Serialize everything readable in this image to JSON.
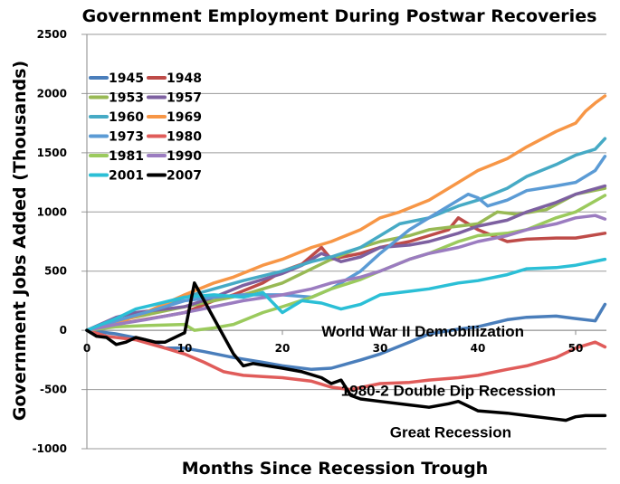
{
  "chart_data": {
    "type": "line",
    "title": "Government Employment During Postwar Recoveries",
    "xlabel": "Months Since Recession Trough",
    "ylabel": "Government Jobs Added (Thousands)",
    "xlim": [
      0,
      54
    ],
    "ylim": [
      -1000,
      2500
    ],
    "x_ticks": [
      0,
      10,
      20,
      30,
      40,
      50
    ],
    "x_tick_labels": [
      "0",
      "10",
      "20",
      "30",
      "40",
      "50"
    ],
    "y_ticks": [
      2500,
      2000,
      1500,
      1000,
      500,
      0,
      -500,
      -1000
    ],
    "y_tick_labels": [
      "2500",
      "2000",
      "1500",
      "1000",
      "500",
      "0",
      "-500",
      "-1000"
    ],
    "grid": "horizontal",
    "legend_position": "top-left",
    "series": [
      {
        "name": "1945",
        "color": "#4a7ebb",
        "points": [
          [
            0,
            0
          ],
          [
            3,
            -30
          ],
          [
            6,
            -80
          ],
          [
            8,
            -150
          ],
          [
            10,
            -150
          ],
          [
            12,
            -180
          ],
          [
            15,
            -230
          ],
          [
            18,
            -270
          ],
          [
            20,
            -300
          ],
          [
            23,
            -330
          ],
          [
            25,
            -320
          ],
          [
            28,
            -250
          ],
          [
            30,
            -200
          ],
          [
            33,
            -100
          ],
          [
            35,
            -30
          ],
          [
            38,
            10
          ],
          [
            40,
            30
          ],
          [
            43,
            90
          ],
          [
            45,
            110
          ],
          [
            48,
            120
          ],
          [
            50,
            100
          ],
          [
            52,
            80
          ],
          [
            53,
            220
          ]
        ]
      },
      {
        "name": "1948",
        "color": "#be4b48",
        "points": [
          [
            0,
            0
          ],
          [
            3,
            50
          ],
          [
            5,
            80
          ],
          [
            8,
            120
          ],
          [
            10,
            150
          ],
          [
            13,
            250
          ],
          [
            15,
            300
          ],
          [
            18,
            400
          ],
          [
            20,
            500
          ],
          [
            22,
            560
          ],
          [
            24,
            700
          ],
          [
            25,
            600
          ],
          [
            28,
            650
          ],
          [
            30,
            700
          ],
          [
            33,
            750
          ],
          [
            35,
            800
          ],
          [
            37,
            850
          ],
          [
            38,
            950
          ],
          [
            40,
            850
          ],
          [
            43,
            750
          ],
          [
            45,
            770
          ],
          [
            48,
            780
          ],
          [
            50,
            780
          ],
          [
            53,
            820
          ]
        ]
      },
      {
        "name": "1953",
        "color": "#98b954",
        "points": [
          [
            0,
            0
          ],
          [
            3,
            80
          ],
          [
            6,
            130
          ],
          [
            10,
            200
          ],
          [
            13,
            250
          ],
          [
            16,
            300
          ],
          [
            20,
            400
          ],
          [
            23,
            520
          ],
          [
            25,
            600
          ],
          [
            28,
            700
          ],
          [
            30,
            750
          ],
          [
            33,
            800
          ],
          [
            35,
            850
          ],
          [
            38,
            880
          ],
          [
            40,
            900
          ],
          [
            42,
            1000
          ],
          [
            44,
            980
          ],
          [
            47,
            1020
          ],
          [
            50,
            1150
          ],
          [
            53,
            1200
          ]
        ]
      },
      {
        "name": "1957",
        "color": "#7d60a0",
        "points": [
          [
            0,
            0
          ],
          [
            3,
            110
          ],
          [
            5,
            150
          ],
          [
            8,
            180
          ],
          [
            10,
            200
          ],
          [
            13,
            280
          ],
          [
            16,
            380
          ],
          [
            20,
            480
          ],
          [
            22,
            550
          ],
          [
            24,
            650
          ],
          [
            26,
            580
          ],
          [
            28,
            620
          ],
          [
            30,
            700
          ],
          [
            33,
            720
          ],
          [
            35,
            750
          ],
          [
            38,
            820
          ],
          [
            40,
            880
          ],
          [
            43,
            930
          ],
          [
            45,
            1000
          ],
          [
            48,
            1080
          ],
          [
            50,
            1150
          ],
          [
            53,
            1220
          ]
        ]
      },
      {
        "name": "1960",
        "color": "#46aac5",
        "points": [
          [
            0,
            0
          ],
          [
            3,
            80
          ],
          [
            6,
            150
          ],
          [
            10,
            280
          ],
          [
            13,
            350
          ],
          [
            16,
            420
          ],
          [
            20,
            500
          ],
          [
            23,
            580
          ],
          [
            25,
            620
          ],
          [
            28,
            700
          ],
          [
            30,
            800
          ],
          [
            32,
            900
          ],
          [
            35,
            950
          ],
          [
            38,
            1050
          ],
          [
            40,
            1100
          ],
          [
            43,
            1200
          ],
          [
            45,
            1300
          ],
          [
            48,
            1400
          ],
          [
            50,
            1480
          ],
          [
            52,
            1530
          ],
          [
            53,
            1620
          ]
        ]
      },
      {
        "name": "1969",
        "color": "#f79646",
        "points": [
          [
            0,
            0
          ],
          [
            3,
            60
          ],
          [
            6,
            150
          ],
          [
            10,
            300
          ],
          [
            13,
            400
          ],
          [
            15,
            450
          ],
          [
            18,
            550
          ],
          [
            20,
            600
          ],
          [
            23,
            700
          ],
          [
            25,
            750
          ],
          [
            28,
            850
          ],
          [
            30,
            950
          ],
          [
            32,
            1000
          ],
          [
            35,
            1100
          ],
          [
            38,
            1250
          ],
          [
            40,
            1350
          ],
          [
            43,
            1450
          ],
          [
            45,
            1550
          ],
          [
            48,
            1680
          ],
          [
            50,
            1750
          ],
          [
            51,
            1850
          ],
          [
            52,
            1920
          ],
          [
            53,
            1980
          ]
        ]
      },
      {
        "name": "1973",
        "color": "#5b9bd5",
        "points": [
          [
            0,
            0
          ],
          [
            3,
            80
          ],
          [
            6,
            150
          ],
          [
            10,
            250
          ],
          [
            13,
            280
          ],
          [
            16,
            300
          ],
          [
            20,
            300
          ],
          [
            23,
            280
          ],
          [
            25,
            350
          ],
          [
            28,
            500
          ],
          [
            30,
            650
          ],
          [
            33,
            850
          ],
          [
            35,
            950
          ],
          [
            37,
            1050
          ],
          [
            39,
            1150
          ],
          [
            40,
            1120
          ],
          [
            41,
            1050
          ],
          [
            43,
            1100
          ],
          [
            45,
            1180
          ],
          [
            48,
            1220
          ],
          [
            50,
            1250
          ],
          [
            52,
            1350
          ],
          [
            53,
            1470
          ]
        ]
      },
      {
        "name": "1980",
        "color": "#e05c5a",
        "points": [
          [
            0,
            0
          ],
          [
            2,
            -50
          ],
          [
            5,
            -80
          ],
          [
            8,
            -150
          ],
          [
            10,
            -200
          ],
          [
            12,
            -270
          ],
          [
            14,
            -350
          ],
          [
            16,
            -380
          ],
          [
            18,
            -390
          ],
          [
            20,
            -400
          ],
          [
            23,
            -430
          ],
          [
            25,
            -480
          ],
          [
            27,
            -500
          ],
          [
            30,
            -450
          ],
          [
            33,
            -440
          ],
          [
            35,
            -420
          ],
          [
            38,
            -400
          ],
          [
            40,
            -380
          ],
          [
            43,
            -330
          ],
          [
            45,
            -300
          ],
          [
            48,
            -230
          ],
          [
            50,
            -150
          ],
          [
            52,
            -100
          ],
          [
            53,
            -140
          ]
        ]
      },
      {
        "name": "1981",
        "color": "#9bca5d",
        "points": [
          [
            0,
            0
          ],
          [
            3,
            30
          ],
          [
            6,
            40
          ],
          [
            10,
            50
          ],
          [
            11,
            0
          ],
          [
            13,
            20
          ],
          [
            15,
            50
          ],
          [
            18,
            150
          ],
          [
            20,
            200
          ],
          [
            23,
            280
          ],
          [
            25,
            350
          ],
          [
            28,
            430
          ],
          [
            30,
            500
          ],
          [
            33,
            600
          ],
          [
            35,
            650
          ],
          [
            38,
            750
          ],
          [
            40,
            800
          ],
          [
            43,
            820
          ],
          [
            45,
            850
          ],
          [
            48,
            950
          ],
          [
            50,
            1000
          ],
          [
            53,
            1140
          ]
        ]
      },
      {
        "name": "1990",
        "color": "#9b7cc0",
        "points": [
          [
            0,
            0
          ],
          [
            3,
            50
          ],
          [
            6,
            90
          ],
          [
            10,
            150
          ],
          [
            13,
            200
          ],
          [
            16,
            250
          ],
          [
            20,
            300
          ],
          [
            23,
            350
          ],
          [
            25,
            400
          ],
          [
            28,
            450
          ],
          [
            30,
            500
          ],
          [
            33,
            600
          ],
          [
            35,
            650
          ],
          [
            38,
            700
          ],
          [
            40,
            750
          ],
          [
            43,
            800
          ],
          [
            45,
            850
          ],
          [
            48,
            900
          ],
          [
            50,
            950
          ],
          [
            52,
            970
          ],
          [
            53,
            940
          ]
        ]
      },
      {
        "name": "2001",
        "color": "#2bbfd6",
        "points": [
          [
            0,
            0
          ],
          [
            3,
            100
          ],
          [
            5,
            180
          ],
          [
            7,
            220
          ],
          [
            10,
            280
          ],
          [
            13,
            300
          ],
          [
            16,
            280
          ],
          [
            18,
            320
          ],
          [
            20,
            150
          ],
          [
            22,
            250
          ],
          [
            24,
            230
          ],
          [
            26,
            180
          ],
          [
            28,
            220
          ],
          [
            30,
            300
          ],
          [
            33,
            330
          ],
          [
            35,
            350
          ],
          [
            38,
            400
          ],
          [
            40,
            420
          ],
          [
            43,
            470
          ],
          [
            45,
            520
          ],
          [
            48,
            530
          ],
          [
            50,
            550
          ],
          [
            53,
            600
          ]
        ]
      },
      {
        "name": "2007",
        "color": "#000000",
        "points": [
          [
            0,
            0
          ],
          [
            1,
            -50
          ],
          [
            2,
            -60
          ],
          [
            3,
            -120
          ],
          [
            4,
            -100
          ],
          [
            5,
            -60
          ],
          [
            6,
            -80
          ],
          [
            7,
            -100
          ],
          [
            8,
            -100
          ],
          [
            10,
            -20
          ],
          [
            11,
            400
          ],
          [
            13,
            100
          ],
          [
            15,
            -200
          ],
          [
            16,
            -300
          ],
          [
            17,
            -280
          ],
          [
            20,
            -320
          ],
          [
            22,
            -350
          ],
          [
            24,
            -400
          ],
          [
            25,
            -450
          ],
          [
            26,
            -420
          ],
          [
            27,
            -550
          ],
          [
            28,
            -580
          ],
          [
            30,
            -600
          ],
          [
            33,
            -630
          ],
          [
            35,
            -650
          ],
          [
            37,
            -620
          ],
          [
            38,
            -600
          ],
          [
            40,
            -680
          ],
          [
            43,
            -700
          ],
          [
            45,
            -720
          ],
          [
            48,
            -750
          ],
          [
            49,
            -760
          ],
          [
            50,
            -730
          ],
          [
            51,
            -720
          ],
          [
            53,
            -720
          ]
        ]
      }
    ],
    "legend": [
      [
        "1945",
        "1948"
      ],
      [
        "1953",
        "1957"
      ],
      [
        "1960",
        "1969"
      ],
      [
        "1973",
        "1980"
      ],
      [
        "1981",
        "1990"
      ],
      [
        "2001",
        "2007"
      ]
    ],
    "annotations": [
      {
        "text": "World War II Demobilization",
        "x": 24,
        "y": 0
      },
      {
        "text": "1980-2 Double Dip Recession",
        "x": 26,
        "y": -500
      },
      {
        "text": "Great Recession",
        "x": 31,
        "y": -850
      }
    ]
  }
}
